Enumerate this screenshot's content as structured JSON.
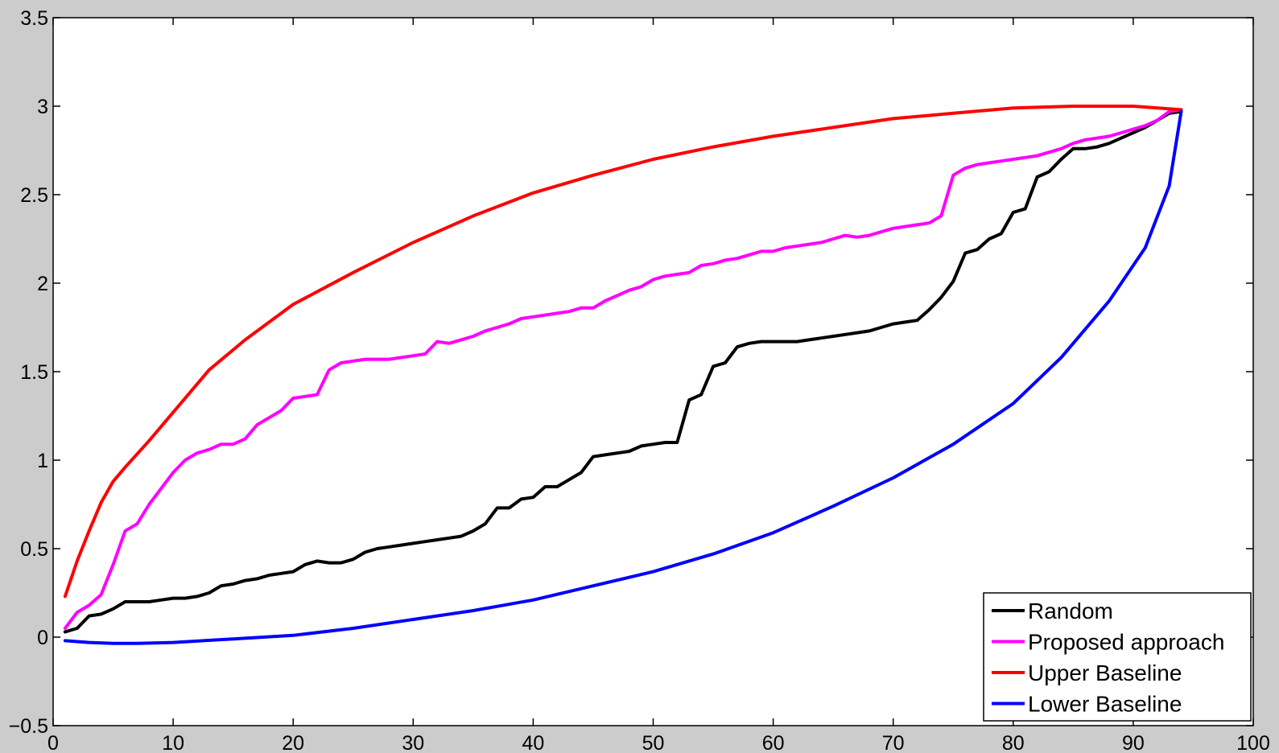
{
  "chart_data": {
    "type": "line",
    "title": "",
    "xlabel": "",
    "ylabel": "",
    "xlim": [
      0,
      100
    ],
    "ylim": [
      -0.5,
      3.5
    ],
    "xticks": [
      0,
      10,
      20,
      30,
      40,
      50,
      60,
      70,
      80,
      90,
      100
    ],
    "yticks": [
      -0.5,
      0,
      0.5,
      1,
      1.5,
      2,
      2.5,
      3,
      3.5
    ],
    "xtick_labels": [
      "0",
      "10",
      "20",
      "30",
      "40",
      "50",
      "60",
      "70",
      "80",
      "90",
      "100"
    ],
    "ytick_labels": [
      "−0.5",
      "0",
      "0.5",
      "1",
      "1.5",
      "2",
      "2.5",
      "3",
      "3.5"
    ],
    "grid": false,
    "legend_position": "bottom-right",
    "series": [
      {
        "name": "Random",
        "color": "#000000",
        "points": [
          [
            1,
            0.03
          ],
          [
            2,
            0.05
          ],
          [
            3,
            0.12
          ],
          [
            4,
            0.13
          ],
          [
            5,
            0.16
          ],
          [
            6,
            0.2
          ],
          [
            7,
            0.2
          ],
          [
            8,
            0.2
          ],
          [
            9,
            0.21
          ],
          [
            10,
            0.22
          ],
          [
            11,
            0.22
          ],
          [
            12,
            0.23
          ],
          [
            13,
            0.25
          ],
          [
            14,
            0.29
          ],
          [
            15,
            0.3
          ],
          [
            16,
            0.32
          ],
          [
            17,
            0.33
          ],
          [
            18,
            0.35
          ],
          [
            19,
            0.36
          ],
          [
            20,
            0.37
          ],
          [
            21,
            0.41
          ],
          [
            22,
            0.43
          ],
          [
            23,
            0.42
          ],
          [
            24,
            0.42
          ],
          [
            25,
            0.44
          ],
          [
            26,
            0.48
          ],
          [
            27,
            0.5
          ],
          [
            28,
            0.51
          ],
          [
            29,
            0.52
          ],
          [
            30,
            0.53
          ],
          [
            31,
            0.54
          ],
          [
            32,
            0.55
          ],
          [
            33,
            0.56
          ],
          [
            34,
            0.57
          ],
          [
            35,
            0.6
          ],
          [
            36,
            0.64
          ],
          [
            37,
            0.73
          ],
          [
            38,
            0.73
          ],
          [
            39,
            0.78
          ],
          [
            40,
            0.79
          ],
          [
            41,
            0.85
          ],
          [
            42,
            0.85
          ],
          [
            43,
            0.89
          ],
          [
            44,
            0.93
          ],
          [
            45,
            1.02
          ],
          [
            46,
            1.03
          ],
          [
            47,
            1.04
          ],
          [
            48,
            1.05
          ],
          [
            49,
            1.08
          ],
          [
            50,
            1.09
          ],
          [
            51,
            1.1
          ],
          [
            52,
            1.1
          ],
          [
            53,
            1.34
          ],
          [
            54,
            1.37
          ],
          [
            55,
            1.53
          ],
          [
            56,
            1.55
          ],
          [
            57,
            1.64
          ],
          [
            58,
            1.66
          ],
          [
            59,
            1.67
          ],
          [
            60,
            1.67
          ],
          [
            61,
            1.67
          ],
          [
            62,
            1.67
          ],
          [
            63,
            1.68
          ],
          [
            64,
            1.69
          ],
          [
            65,
            1.7
          ],
          [
            66,
            1.71
          ],
          [
            67,
            1.72
          ],
          [
            68,
            1.73
          ],
          [
            69,
            1.75
          ],
          [
            70,
            1.77
          ],
          [
            71,
            1.78
          ],
          [
            72,
            1.79
          ],
          [
            73,
            1.85
          ],
          [
            74,
            1.92
          ],
          [
            75,
            2.01
          ],
          [
            76,
            2.17
          ],
          [
            77,
            2.19
          ],
          [
            78,
            2.25
          ],
          [
            79,
            2.28
          ],
          [
            80,
            2.4
          ],
          [
            81,
            2.42
          ],
          [
            82,
            2.6
          ],
          [
            83,
            2.63
          ],
          [
            84,
            2.7
          ],
          [
            85,
            2.76
          ],
          [
            86,
            2.76
          ],
          [
            87,
            2.77
          ],
          [
            88,
            2.79
          ],
          [
            89,
            2.82
          ],
          [
            90,
            2.85
          ],
          [
            91,
            2.88
          ],
          [
            92,
            2.92
          ],
          [
            93,
            2.96
          ],
          [
            94,
            2.97
          ]
        ]
      },
      {
        "name": "Proposed approach",
        "color": "#ff00ff",
        "points": [
          [
            1,
            0.05
          ],
          [
            2,
            0.14
          ],
          [
            3,
            0.18
          ],
          [
            4,
            0.24
          ],
          [
            5,
            0.41
          ],
          [
            6,
            0.6
          ],
          [
            7,
            0.64
          ],
          [
            8,
            0.75
          ],
          [
            9,
            0.84
          ],
          [
            10,
            0.93
          ],
          [
            11,
            1.0
          ],
          [
            12,
            1.04
          ],
          [
            13,
            1.06
          ],
          [
            14,
            1.09
          ],
          [
            15,
            1.09
          ],
          [
            16,
            1.12
          ],
          [
            17,
            1.2
          ],
          [
            18,
            1.24
          ],
          [
            19,
            1.28
          ],
          [
            20,
            1.35
          ],
          [
            21,
            1.36
          ],
          [
            22,
            1.37
          ],
          [
            23,
            1.51
          ],
          [
            24,
            1.55
          ],
          [
            25,
            1.56
          ],
          [
            26,
            1.57
          ],
          [
            27,
            1.57
          ],
          [
            28,
            1.57
          ],
          [
            29,
            1.58
          ],
          [
            30,
            1.59
          ],
          [
            31,
            1.6
          ],
          [
            32,
            1.67
          ],
          [
            33,
            1.66
          ],
          [
            34,
            1.68
          ],
          [
            35,
            1.7
          ],
          [
            36,
            1.73
          ],
          [
            37,
            1.75
          ],
          [
            38,
            1.77
          ],
          [
            39,
            1.8
          ],
          [
            40,
            1.81
          ],
          [
            41,
            1.82
          ],
          [
            42,
            1.83
          ],
          [
            43,
            1.84
          ],
          [
            44,
            1.86
          ],
          [
            45,
            1.86
          ],
          [
            46,
            1.9
          ],
          [
            47,
            1.93
          ],
          [
            48,
            1.96
          ],
          [
            49,
            1.98
          ],
          [
            50,
            2.02
          ],
          [
            51,
            2.04
          ],
          [
            52,
            2.05
          ],
          [
            53,
            2.06
          ],
          [
            54,
            2.1
          ],
          [
            55,
            2.11
          ],
          [
            56,
            2.13
          ],
          [
            57,
            2.14
          ],
          [
            58,
            2.16
          ],
          [
            59,
            2.18
          ],
          [
            60,
            2.18
          ],
          [
            61,
            2.2
          ],
          [
            62,
            2.21
          ],
          [
            63,
            2.22
          ],
          [
            64,
            2.23
          ],
          [
            65,
            2.25
          ],
          [
            66,
            2.27
          ],
          [
            67,
            2.26
          ],
          [
            68,
            2.27
          ],
          [
            69,
            2.29
          ],
          [
            70,
            2.31
          ],
          [
            71,
            2.32
          ],
          [
            72,
            2.33
          ],
          [
            73,
            2.34
          ],
          [
            74,
            2.38
          ],
          [
            75,
            2.61
          ],
          [
            76,
            2.65
          ],
          [
            77,
            2.67
          ],
          [
            78,
            2.68
          ],
          [
            79,
            2.69
          ],
          [
            80,
            2.7
          ],
          [
            81,
            2.71
          ],
          [
            82,
            2.72
          ],
          [
            83,
            2.74
          ],
          [
            84,
            2.76
          ],
          [
            85,
            2.79
          ],
          [
            86,
            2.81
          ],
          [
            87,
            2.82
          ],
          [
            88,
            2.83
          ],
          [
            89,
            2.85
          ],
          [
            90,
            2.87
          ],
          [
            91,
            2.89
          ],
          [
            92,
            2.92
          ],
          [
            93,
            2.97
          ],
          [
            94,
            2.98
          ]
        ]
      },
      {
        "name": "Upper Baseline",
        "color": "#ff0000",
        "points": [
          [
            1,
            0.23
          ],
          [
            2,
            0.43
          ],
          [
            3,
            0.6
          ],
          [
            4,
            0.76
          ],
          [
            5,
            0.88
          ],
          [
            6,
            0.96
          ],
          [
            8,
            1.11
          ],
          [
            10,
            1.27
          ],
          [
            13,
            1.51
          ],
          [
            16,
            1.68
          ],
          [
            20,
            1.88
          ],
          [
            25,
            2.06
          ],
          [
            30,
            2.23
          ],
          [
            35,
            2.38
          ],
          [
            40,
            2.51
          ],
          [
            45,
            2.61
          ],
          [
            50,
            2.7
          ],
          [
            55,
            2.77
          ],
          [
            60,
            2.83
          ],
          [
            65,
            2.88
          ],
          [
            70,
            2.93
          ],
          [
            75,
            2.96
          ],
          [
            80,
            2.99
          ],
          [
            85,
            3.0
          ],
          [
            90,
            3.0
          ],
          [
            94,
            2.98
          ]
        ]
      },
      {
        "name": "Lower Baseline",
        "color": "#0000ff",
        "points": [
          [
            1,
            -0.02
          ],
          [
            3,
            -0.03
          ],
          [
            5,
            -0.035
          ],
          [
            7,
            -0.035
          ],
          [
            10,
            -0.03
          ],
          [
            15,
            -0.01
          ],
          [
            20,
            0.01
          ],
          [
            25,
            0.05
          ],
          [
            30,
            0.1
          ],
          [
            35,
            0.15
          ],
          [
            40,
            0.21
          ],
          [
            45,
            0.29
          ],
          [
            50,
            0.37
          ],
          [
            55,
            0.47
          ],
          [
            60,
            0.59
          ],
          [
            65,
            0.74
          ],
          [
            70,
            0.9
          ],
          [
            75,
            1.09
          ],
          [
            80,
            1.32
          ],
          [
            84,
            1.58
          ],
          [
            88,
            1.9
          ],
          [
            91,
            2.2
          ],
          [
            93,
            2.55
          ],
          [
            94,
            2.97
          ]
        ]
      }
    ]
  }
}
